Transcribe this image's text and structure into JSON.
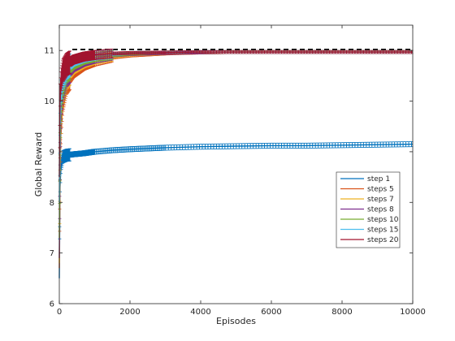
{
  "chart_data": {
    "type": "line",
    "xlabel": "Episodes",
    "ylabel": "Global Reward",
    "xlim": [
      0,
      10000
    ],
    "ylim": [
      6,
      11.5
    ],
    "x_ticks": [
      {
        "value": 0,
        "label": "0"
      },
      {
        "value": 2000,
        "label": "2000"
      },
      {
        "value": 4000,
        "label": "4000"
      },
      {
        "value": 6000,
        "label": "6000"
      },
      {
        "value": 8000,
        "label": "8000"
      },
      {
        "value": 10000,
        "label": "10000"
      }
    ],
    "y_ticks": [
      {
        "value": 6,
        "label": "6"
      },
      {
        "value": 7,
        "label": "7"
      },
      {
        "value": 8,
        "label": "8"
      },
      {
        "value": 9,
        "label": "9"
      },
      {
        "value": 10,
        "label": "10"
      },
      {
        "value": 11,
        "label": "11"
      }
    ],
    "reference_line": {
      "y": 11.02,
      "style": "dashed",
      "color": "#000000"
    },
    "legend": {
      "placement": "right"
    },
    "error_bars": true,
    "series": [
      {
        "name": "step 1",
        "color": "#0072BD",
        "x": [
          0,
          20,
          50,
          100,
          200,
          400,
          700,
          1000,
          1500,
          2000,
          3000,
          4000,
          5000,
          6000,
          7000,
          8000,
          9000,
          10000
        ],
        "y": [
          6.5,
          8.3,
          8.75,
          8.9,
          8.93,
          8.95,
          8.97,
          9.0,
          9.03,
          9.05,
          9.08,
          9.1,
          9.11,
          9.12,
          9.12,
          9.13,
          9.14,
          9.15
        ]
      },
      {
        "name": "steps 5",
        "color": "#D95319",
        "x": [
          0,
          20,
          50,
          100,
          200,
          400,
          700,
          1000,
          1500,
          2000,
          3000,
          4000,
          5000,
          6000,
          7000,
          8000,
          9000,
          10000
        ],
        "y": [
          6.7,
          8.6,
          9.5,
          10.0,
          10.35,
          10.55,
          10.7,
          10.78,
          10.86,
          10.9,
          10.94,
          10.96,
          10.97,
          10.97,
          10.97,
          10.97,
          10.97,
          10.97
        ]
      },
      {
        "name": "steps 7",
        "color": "#EDB120",
        "x": [
          0,
          20,
          50,
          100,
          200,
          400,
          700,
          1000,
          1500,
          2000,
          3000,
          4000,
          5000,
          6000,
          7000,
          8000,
          9000,
          10000
        ],
        "y": [
          6.8,
          8.8,
          9.7,
          10.15,
          10.45,
          10.63,
          10.75,
          10.82,
          10.88,
          10.92,
          10.95,
          10.96,
          10.97,
          10.97,
          10.97,
          10.97,
          10.97,
          10.97
        ]
      },
      {
        "name": "steps 8",
        "color": "#7E2F8E",
        "x": [
          0,
          20,
          50,
          100,
          200,
          400,
          700,
          1000,
          1500,
          2000,
          3000,
          4000,
          5000,
          6000,
          7000,
          8000,
          9000,
          10000
        ],
        "y": [
          6.9,
          8.9,
          9.8,
          10.2,
          10.5,
          10.67,
          10.78,
          10.84,
          10.9,
          10.93,
          10.95,
          10.96,
          10.97,
          10.97,
          10.97,
          10.97,
          10.97,
          10.97
        ]
      },
      {
        "name": "steps 10",
        "color": "#77AC30",
        "x": [
          0,
          20,
          50,
          100,
          200,
          400,
          700,
          1000,
          1500,
          2000,
          3000,
          4000,
          5000,
          6000,
          7000,
          8000,
          9000,
          10000
        ],
        "y": [
          7.3,
          9.1,
          9.95,
          10.3,
          10.58,
          10.72,
          10.82,
          10.87,
          10.91,
          10.94,
          10.96,
          10.97,
          10.97,
          10.97,
          10.97,
          10.97,
          10.97,
          10.97
        ]
      },
      {
        "name": "steps 15",
        "color": "#4DBEEE",
        "x": [
          0,
          20,
          50,
          100,
          200,
          400,
          700,
          1000,
          1500,
          2000,
          3000,
          4000,
          5000,
          6000,
          7000,
          8000,
          9000,
          10000
        ],
        "y": [
          8.0,
          9.5,
          10.15,
          10.45,
          10.65,
          10.78,
          10.86,
          10.9,
          10.93,
          10.95,
          10.96,
          10.97,
          10.97,
          10.97,
          10.97,
          10.97,
          10.97,
          10.97
        ]
      },
      {
        "name": "steps 20",
        "color": "#A2142F",
        "x": [
          0,
          20,
          50,
          100,
          200,
          400,
          700,
          1000,
          1500,
          2000,
          3000,
          4000,
          5000,
          6000,
          7000,
          8000,
          9000,
          10000
        ],
        "y": [
          8.5,
          10.1,
          10.4,
          10.6,
          10.72,
          10.82,
          10.88,
          10.91,
          10.94,
          10.95,
          10.96,
          10.97,
          10.97,
          10.97,
          10.97,
          10.97,
          10.97,
          10.97
        ]
      }
    ]
  }
}
